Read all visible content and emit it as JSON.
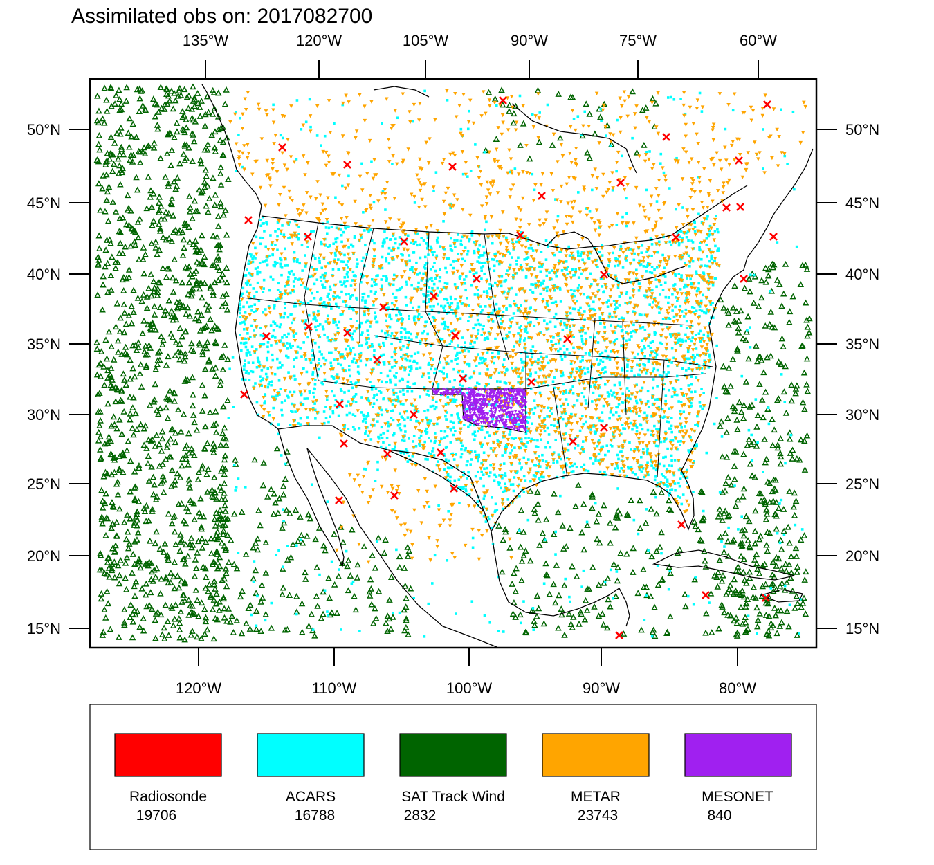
{
  "title": "Assimilated obs on: 2017082700",
  "map": {
    "top_axis_labels": [
      "135°W",
      "120°W",
      "105°W",
      "90°W",
      "75°W",
      "60°W"
    ],
    "bottom_axis_labels": [
      "120°W",
      "110°W",
      "100°W",
      "90°W",
      "80°W"
    ],
    "left_axis_labels": [
      "50°N",
      "45°N",
      "40°N",
      "35°N",
      "30°N",
      "25°N",
      "20°N",
      "15°N"
    ],
    "right_axis_labels": [
      "50°N",
      "45°N",
      "40°N",
      "35°N",
      "30°N",
      "25°N",
      "20°N",
      "15°N"
    ],
    "bottom_lon_values": [
      -120,
      -110,
      -100,
      -90,
      -80
    ],
    "lat_values": [
      50,
      45,
      40,
      35,
      30,
      25,
      20,
      15
    ]
  },
  "legend": [
    {
      "name": "Radiosonde",
      "count": "19706",
      "color": "#ff0000"
    },
    {
      "name": "ACARS",
      "count": "16788",
      "color": "#00ffff"
    },
    {
      "name": "SAT Track Wind",
      "count": "2832",
      "color": "#006400"
    },
    {
      "name": "METAR",
      "count": "23743",
      "color": "#ffa500"
    },
    {
      "name": "MESONET",
      "count": "840",
      "color": "#a020f0"
    }
  ],
  "colors": {
    "radiosonde": "#ff0000",
    "acars": "#00ffff",
    "sat_track_wind": "#006400",
    "metar": "#ffa500",
    "mesonet": "#a020f0",
    "border": "#000000"
  }
}
